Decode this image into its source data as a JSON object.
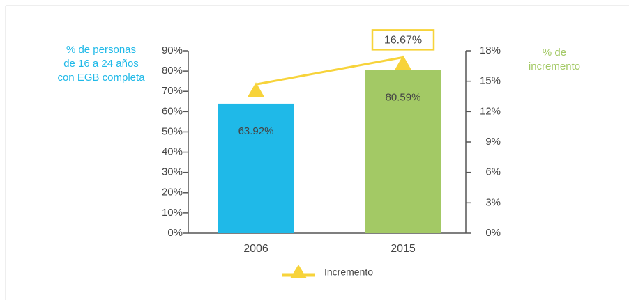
{
  "chart_data": {
    "type": "bar",
    "categories": [
      "2006",
      "2015"
    ],
    "y_axis_title": [
      "% de personas",
      "de 16 a 24 años",
      "con EGB completa"
    ],
    "y2_axis_title": [
      "% de",
      "incremento"
    ],
    "y_title_color": "#1fb9e8",
    "y2_title_color": "#a3c965",
    "ylim": [
      0,
      90
    ],
    "yticks": [
      {
        "value": 0,
        "label": "0%"
      },
      {
        "value": 10,
        "label": "10%"
      },
      {
        "value": 20,
        "label": "20%"
      },
      {
        "value": 30,
        "label": "30%"
      },
      {
        "value": 40,
        "label": "40%"
      },
      {
        "value": 50,
        "label": "50%"
      },
      {
        "value": 60,
        "label": "60%"
      },
      {
        "value": 70,
        "label": "70%"
      },
      {
        "value": 80,
        "label": "80%"
      },
      {
        "value": 90,
        "label": "90%"
      }
    ],
    "y2lim": [
      0,
      18
    ],
    "y2ticks": [
      {
        "value": 0,
        "label": "0%"
      },
      {
        "value": 3,
        "label": "3%"
      },
      {
        "value": 6,
        "label": "6%"
      },
      {
        "value": 9,
        "label": "9%"
      },
      {
        "value": 12,
        "label": "12%"
      },
      {
        "value": 15,
        "label": "15%"
      },
      {
        "value": 18,
        "label": "18%"
      }
    ],
    "series": [
      {
        "type": "bar",
        "colors": [
          "#1fb9e8",
          "#a3c965"
        ],
        "values": [
          63.92,
          80.59
        ],
        "value_labels": [
          "63.92%",
          "80.59%"
        ]
      },
      {
        "type": "line",
        "name": "Incremento",
        "axis": "y2",
        "color": "#f7d33a",
        "values": [
          14,
          16.67
        ],
        "value_labels": [
          null,
          "16.67%"
        ]
      }
    ],
    "legend": "bottom"
  }
}
